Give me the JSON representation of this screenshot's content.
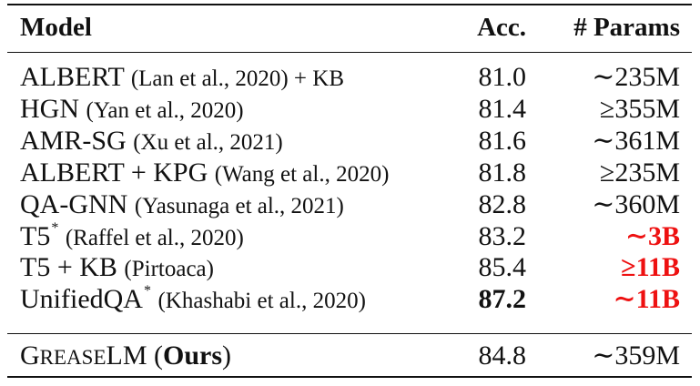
{
  "table": {
    "headers": {
      "model": "Model",
      "acc": "Acc.",
      "params": "# Params"
    },
    "rows": [
      {
        "model": "ALBERT",
        "citation": "(Lan et al., 2020) + KB",
        "sup": "",
        "acc": "81.0",
        "params": "∼235M"
      },
      {
        "model": "HGN",
        "citation": "(Yan et al., 2020)",
        "sup": "",
        "acc": "81.4",
        "params": "≥355M"
      },
      {
        "model": "AMR-SG",
        "citation": "(Xu et al., 2021)",
        "sup": "",
        "acc": "81.6",
        "params": "∼361M"
      },
      {
        "model": "ALBERT + KPG",
        "citation": "(Wang et al., 2020)",
        "sup": "",
        "acc": "81.8",
        "params": "≥235M"
      },
      {
        "model": "QA-GNN",
        "citation": "(Yasunaga et al., 2021)",
        "sup": "",
        "acc": "82.8",
        "params": "∼360M"
      },
      {
        "model": "T5",
        "citation": "(Raffel et al., 2020)",
        "sup": "*",
        "acc": "83.2",
        "params": "∼3B"
      },
      {
        "model": "T5 + KB",
        "citation": "(Pirtoaca)",
        "sup": "",
        "acc": "85.4",
        "params": "≥11B"
      },
      {
        "model": "UnifiedQA",
        "citation": "(Khashabi et al., 2020)",
        "sup": "*",
        "acc": "87.2",
        "params": "∼11B"
      }
    ],
    "ours": {
      "name_cap_g": "G",
      "name_sc": "REASE",
      "name_lm": "LM",
      "open_paren": "(",
      "ours_label": "Ours",
      "close_paren": ")",
      "acc": "84.8",
      "params": "∼359M"
    },
    "highlight_color": "#ee1111"
  }
}
